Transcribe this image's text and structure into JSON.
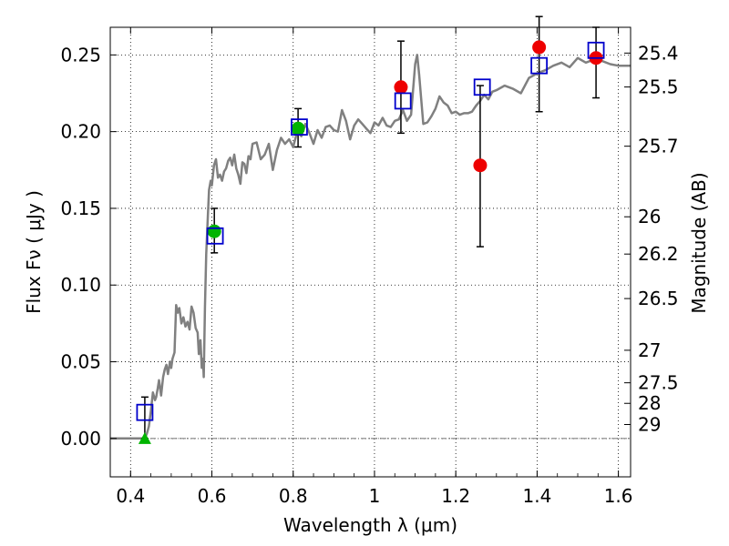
{
  "chart_data": {
    "type": "scatter",
    "title": "",
    "xlabel": "Wavelength  λ (μm)",
    "ylabel": "Flux  Fν  ( μJy )",
    "ylabel_right": "Magnitude (AB)",
    "xlim": [
      0.35,
      1.63
    ],
    "ylim": [
      -0.025,
      0.268
    ],
    "x_ticks": [
      0.4,
      0.6,
      0.8,
      1.0,
      1.2,
      1.4,
      1.6
    ],
    "x_tick_labels": [
      "0.4",
      "0.6",
      "0.8",
      "1",
      "1.2",
      "1.4",
      "1.6"
    ],
    "y_ticks": [
      0.0,
      0.05,
      0.1,
      0.15,
      0.2,
      0.25
    ],
    "y_tick_labels": [
      "0.00",
      "0.05",
      "0.10",
      "0.15",
      "0.20",
      "0.25"
    ],
    "mag_ticks": [
      {
        "label": "25.4",
        "flux": 0.2512
      },
      {
        "label": "25.5",
        "flux": 0.2291
      },
      {
        "label": "25.7",
        "flux": 0.1905
      },
      {
        "label": "26",
        "flux": 0.1445
      },
      {
        "label": "26.2",
        "flux": 0.1202
      },
      {
        "label": "26.5",
        "flux": 0.0912
      },
      {
        "label": "27",
        "flux": 0.0575
      },
      {
        "label": "27.5",
        "flux": 0.0363
      },
      {
        "label": "28",
        "flux": 0.0229
      },
      {
        "label": "29",
        "flux": 0.0091
      }
    ],
    "grid": true,
    "zero_line": 0.0,
    "colors": {
      "model": "#808080",
      "model_points": "#0000cc",
      "obs_green": "#00b400",
      "obs_red": "#ee0000",
      "errorbar": "#000000"
    },
    "series": [
      {
        "name": "model SED",
        "type": "line",
        "x": [
          0.35,
          0.43,
          0.436,
          0.44,
          0.445,
          0.45,
          0.455,
          0.46,
          0.463,
          0.467,
          0.47,
          0.475,
          0.48,
          0.484,
          0.488,
          0.492,
          0.497,
          0.5,
          0.503,
          0.508,
          0.512,
          0.516,
          0.52,
          0.525,
          0.53,
          0.535,
          0.54,
          0.545,
          0.55,
          0.555,
          0.56,
          0.565,
          0.568,
          0.572,
          0.575,
          0.578,
          0.58,
          0.583,
          0.586,
          0.59,
          0.593,
          0.597,
          0.6,
          0.605,
          0.61,
          0.615,
          0.62,
          0.625,
          0.63,
          0.635,
          0.64,
          0.645,
          0.65,
          0.655,
          0.66,
          0.665,
          0.67,
          0.675,
          0.68,
          0.685,
          0.69,
          0.695,
          0.7,
          0.71,
          0.72,
          0.73,
          0.74,
          0.75,
          0.76,
          0.77,
          0.78,
          0.79,
          0.8,
          0.81,
          0.82,
          0.83,
          0.84,
          0.85,
          0.86,
          0.87,
          0.88,
          0.89,
          0.9,
          0.91,
          0.92,
          0.93,
          0.94,
          0.95,
          0.96,
          0.97,
          0.98,
          0.99,
          1.0,
          1.01,
          1.02,
          1.03,
          1.04,
          1.05,
          1.06,
          1.07,
          1.08,
          1.09,
          1.1,
          1.105,
          1.11,
          1.12,
          1.13,
          1.14,
          1.15,
          1.16,
          1.17,
          1.18,
          1.19,
          1.2,
          1.21,
          1.22,
          1.23,
          1.24,
          1.25,
          1.26,
          1.27,
          1.28,
          1.29,
          1.3,
          1.32,
          1.34,
          1.36,
          1.38,
          1.4,
          1.42,
          1.44,
          1.46,
          1.48,
          1.5,
          1.52,
          1.54,
          1.56,
          1.58,
          1.6,
          1.63
        ],
        "y": [
          0.0,
          0.0,
          0.001,
          0.003,
          0.008,
          0.018,
          0.03,
          0.025,
          0.027,
          0.033,
          0.038,
          0.028,
          0.04,
          0.045,
          0.048,
          0.042,
          0.05,
          0.046,
          0.052,
          0.056,
          0.087,
          0.082,
          0.085,
          0.075,
          0.079,
          0.073,
          0.076,
          0.071,
          0.086,
          0.082,
          0.072,
          0.069,
          0.055,
          0.064,
          0.046,
          0.052,
          0.04,
          0.085,
          0.12,
          0.145,
          0.162,
          0.168,
          0.165,
          0.178,
          0.182,
          0.17,
          0.172,
          0.168,
          0.174,
          0.176,
          0.181,
          0.183,
          0.178,
          0.185,
          0.176,
          0.172,
          0.166,
          0.18,
          0.179,
          0.173,
          0.184,
          0.182,
          0.192,
          0.193,
          0.182,
          0.185,
          0.192,
          0.175,
          0.188,
          0.196,
          0.192,
          0.195,
          0.19,
          0.2,
          0.197,
          0.205,
          0.199,
          0.192,
          0.201,
          0.196,
          0.203,
          0.204,
          0.201,
          0.2,
          0.214,
          0.207,
          0.195,
          0.204,
          0.208,
          0.205,
          0.202,
          0.199,
          0.206,
          0.204,
          0.209,
          0.204,
          0.203,
          0.207,
          0.208,
          0.214,
          0.207,
          0.211,
          0.244,
          0.25,
          0.237,
          0.205,
          0.206,
          0.21,
          0.215,
          0.223,
          0.219,
          0.217,
          0.212,
          0.213,
          0.211,
          0.212,
          0.212,
          0.213,
          0.217,
          0.22,
          0.224,
          0.221,
          0.226,
          0.227,
          0.23,
          0.228,
          0.225,
          0.235,
          0.238,
          0.24,
          0.243,
          0.245,
          0.242,
          0.248,
          0.245,
          0.247,
          0.246,
          0.244,
          0.243,
          0.243
        ]
      },
      {
        "name": "model photometry",
        "type": "scatter",
        "marker": "open-square",
        "x": [
          0.435,
          0.608,
          0.815,
          1.07,
          1.265,
          1.405,
          1.545
        ],
        "y": [
          0.017,
          0.132,
          0.203,
          0.22,
          0.229,
          0.243,
          0.253
        ]
      },
      {
        "name": "observed (green)",
        "type": "scatter",
        "marker": "filled-circle",
        "x": [
          0.606,
          0.812
        ],
        "y": [
          0.135,
          0.202
        ],
        "yerr_low": [
          0.014,
          0.012
        ],
        "yerr_high": [
          0.015,
          0.013
        ]
      },
      {
        "name": "observed (red)",
        "type": "scatter",
        "marker": "filled-circle",
        "x": [
          1.065,
          1.26,
          1.405,
          1.545
        ],
        "y": [
          0.229,
          0.178,
          0.255,
          0.248
        ],
        "yerr_low": [
          0.03,
          0.053,
          0.042,
          0.026
        ],
        "yerr_high": [
          0.03,
          0.052,
          0.02,
          0.02
        ]
      },
      {
        "name": "upper limit",
        "type": "scatter",
        "marker": "filled-triangle",
        "x": [
          0.435
        ],
        "y": [
          0.0
        ],
        "yerr_low": [
          0.0
        ],
        "yerr_high": [
          0.027
        ]
      }
    ]
  }
}
